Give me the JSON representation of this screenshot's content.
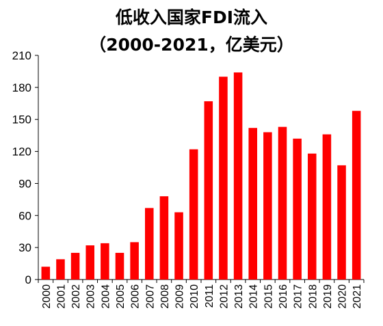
{
  "chart_data": {
    "type": "bar",
    "title": "低收入国家FDI流入",
    "subtitle": "（2000-2021，亿美元）",
    "xlabel": "",
    "ylabel": "",
    "categories": [
      "2000",
      "2001",
      "2002",
      "2003",
      "2004",
      "2005",
      "2006",
      "2007",
      "2008",
      "2009",
      "2010",
      "2011",
      "2012",
      "2013",
      "2014",
      "2015",
      "2016",
      "2017",
      "2018",
      "2019",
      "2020",
      "2021"
    ],
    "values": [
      12,
      19,
      25,
      32,
      34,
      25,
      35,
      67,
      78,
      63,
      122,
      167,
      190,
      194,
      142,
      138,
      143,
      132,
      118,
      136,
      107,
      158
    ],
    "ylim": [
      0,
      210
    ],
    "yticks": [
      0,
      30,
      60,
      90,
      120,
      150,
      180,
      210
    ],
    "grid": false,
    "legend": "none",
    "bar_color": "#ff0000"
  }
}
